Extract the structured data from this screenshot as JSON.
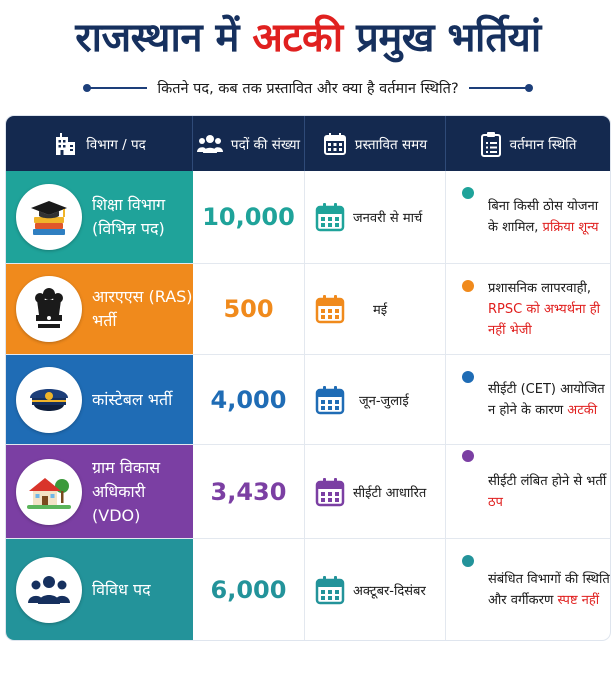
{
  "title": {
    "part1": "राजस्थान में ",
    "highlight": "अटकी",
    "part2": " प्रमुख भर्तियां"
  },
  "subtitle": "कितने पद, कब तक प्रस्तावित और क्या है वर्तमान स्थिति?",
  "headers": {
    "dept": "विभाग / पद",
    "count": "पदों की संख्या",
    "date": "प्रस्तावित समय",
    "status": "वर्तमान स्थिति"
  },
  "icons": {
    "header_dept": "building-icon",
    "header_count": "people-icon",
    "header_date": "calendar-icon",
    "header_status": "clipboard-icon"
  },
  "colors": {
    "teal": "#1fa39a",
    "orange": "#f08a1c",
    "blue": "#1f6cb5",
    "purple": "#7b3fa3",
    "cyan": "#23939a",
    "red": "#e0201f",
    "navy": "#14294f"
  },
  "rows": [
    {
      "dept": "शिक्षा विभाग\n(विभिन्न पद)",
      "icon": "graduation-books-icon",
      "count": "10,000",
      "date": "जनवरी से मार्च",
      "status_plain": "बिना किसी ठोस योजना के शामिल, ",
      "status_red": "प्रक्रिया शून्य"
    },
    {
      "dept": "आरएएस (RAS)\nभर्ती",
      "icon": "ashoka-emblem-icon",
      "count": "500",
      "date": "मई",
      "status_plain": "प्रशासनिक लापरवाही, ",
      "status_red": "RPSC को अभ्यर्थना ही नहीं भेजी"
    },
    {
      "dept": "कांस्टेबल भर्ती",
      "icon": "police-cap-icon",
      "count": "4,000",
      "date": "जून-जुलाई",
      "status_plain": "सीईटी (CET) आयोजित न होने के कारण ",
      "status_red": "अटकी"
    },
    {
      "dept": "ग्राम विकास\nअधिकारी (VDO)",
      "icon": "village-house-icon",
      "count": "3,430",
      "date": "सीईटी आधारित",
      "status_plain": "सीईटी लंबित होने से भर्ती ",
      "status_red": "ठप"
    },
    {
      "dept": "विविध पद",
      "icon": "group-icon",
      "count": "6,000",
      "date": "अक्टूबर-दिसंबर",
      "status_plain": "संबंधित विभागों की स्थिति और वर्गीकरण ",
      "status_red": "स्पष्ट नहीं"
    }
  ]
}
